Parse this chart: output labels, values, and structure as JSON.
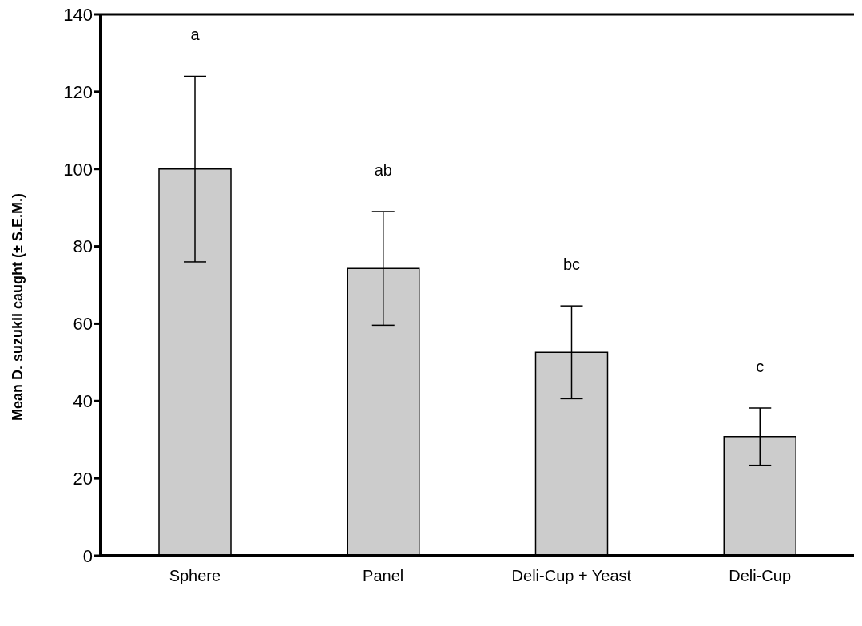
{
  "chart_data": {
    "type": "bar",
    "ylabel": "Mean D. suzukii caught (± S.E.M.)",
    "categories": [
      "Sphere",
      "Panel",
      "Deli-Cup + Yeast",
      "Deli-Cup"
    ],
    "values": [
      100,
      74.3,
      52.6,
      30.8
    ],
    "errors": [
      24,
      14.7,
      12,
      7.4
    ],
    "color": "#cccccc",
    "ylim": [
      0,
      140
    ],
    "yticks": [
      0,
      20,
      40,
      60,
      80,
      100,
      120,
      140
    ],
    "grid": false,
    "legend": false,
    "annotations": [
      "a",
      "ab",
      "bc",
      "c"
    ]
  }
}
